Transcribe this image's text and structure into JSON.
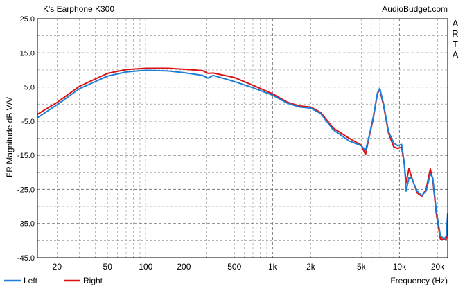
{
  "chart_data": {
    "type": "line",
    "title": "K's Earphone K300",
    "watermark": "AudioBudget.com",
    "side_label": [
      "A",
      "R",
      "T",
      "A"
    ],
    "xlabel": "Frequency (Hz)",
    "ylabel": "FR Magnitude dB V/V",
    "x_scale": "log",
    "xlim": [
      14,
      24000
    ],
    "ylim": [
      -45,
      25
    ],
    "x_ticks": [
      {
        "value": 20,
        "label": "20"
      },
      {
        "value": 50,
        "label": "50"
      },
      {
        "value": 100,
        "label": "100"
      },
      {
        "value": 200,
        "label": "200"
      },
      {
        "value": 500,
        "label": "500"
      },
      {
        "value": 1000,
        "label": "1k"
      },
      {
        "value": 2000,
        "label": "2k"
      },
      {
        "value": 5000,
        "label": "5k"
      },
      {
        "value": 10000,
        "label": "10k"
      },
      {
        "value": 20000,
        "label": "20k"
      }
    ],
    "y_ticks": [
      {
        "value": 25,
        "label": "25.0"
      },
      {
        "value": 15,
        "label": "15.0"
      },
      {
        "value": 5,
        "label": "5.0"
      },
      {
        "value": -5,
        "label": "-5.0"
      },
      {
        "value": -15,
        "label": "-15.0"
      },
      {
        "value": -25,
        "label": "-25.0"
      },
      {
        "value": -35,
        "label": "-35.0"
      },
      {
        "value": -45,
        "label": "-45.0"
      }
    ],
    "grid": true,
    "legend_position": "bottom-left",
    "series": [
      {
        "name": "Left",
        "color": "#1e7fd8",
        "points": [
          [
            14,
            -4
          ],
          [
            20,
            -0.2
          ],
          [
            30,
            4.5
          ],
          [
            50,
            8.2
          ],
          [
            70,
            9.4
          ],
          [
            100,
            9.9
          ],
          [
            150,
            9.7
          ],
          [
            200,
            9.2
          ],
          [
            280,
            8.4
          ],
          [
            310,
            7.6
          ],
          [
            340,
            8.4
          ],
          [
            500,
            6.6
          ],
          [
            700,
            4.8
          ],
          [
            1000,
            2.6
          ],
          [
            1300,
            0.3
          ],
          [
            1600,
            -0.8
          ],
          [
            2000,
            -1.2
          ],
          [
            2400,
            -2.8
          ],
          [
            3000,
            -7.5
          ],
          [
            4000,
            -10.8
          ],
          [
            5000,
            -12.2
          ],
          [
            5400,
            -13.6
          ],
          [
            5700,
            -10.2
          ],
          [
            6200,
            -4
          ],
          [
            6700,
            3.2
          ],
          [
            7000,
            4.6
          ],
          [
            7500,
            0
          ],
          [
            8200,
            -8
          ],
          [
            9000,
            -11.4
          ],
          [
            9700,
            -12.2
          ],
          [
            10400,
            -11.8
          ],
          [
            10900,
            -17
          ],
          [
            11300,
            -25.5
          ],
          [
            11900,
            -21.5
          ],
          [
            12500,
            -21.8
          ],
          [
            13800,
            -25.5
          ],
          [
            15000,
            -26.8
          ],
          [
            16200,
            -25.5
          ],
          [
            17500,
            -20.5
          ],
          [
            18300,
            -21.5
          ],
          [
            19500,
            -31
          ],
          [
            21000,
            -38.5
          ],
          [
            22500,
            -39.5
          ],
          [
            23400,
            -38.6
          ],
          [
            24000,
            -32
          ]
        ]
      },
      {
        "name": "Right",
        "color": "#dd1111",
        "points": [
          [
            14,
            -3
          ],
          [
            20,
            0.5
          ],
          [
            30,
            5.2
          ],
          [
            50,
            9
          ],
          [
            70,
            10.1
          ],
          [
            100,
            10.5
          ],
          [
            150,
            10.5
          ],
          [
            200,
            10.2
          ],
          [
            280,
            9.8
          ],
          [
            310,
            9
          ],
          [
            340,
            9.1
          ],
          [
            500,
            7.8
          ],
          [
            700,
            5.5
          ],
          [
            1000,
            3
          ],
          [
            1300,
            0.6
          ],
          [
            1600,
            -0.5
          ],
          [
            2000,
            -0.9
          ],
          [
            2400,
            -2.5
          ],
          [
            3000,
            -7
          ],
          [
            4000,
            -10
          ],
          [
            5000,
            -12
          ],
          [
            5400,
            -14.8
          ],
          [
            5700,
            -10.5
          ],
          [
            6200,
            -4.5
          ],
          [
            6700,
            3
          ],
          [
            7000,
            4.3
          ],
          [
            7500,
            -0.5
          ],
          [
            8200,
            -8.5
          ],
          [
            9000,
            -12.5
          ],
          [
            9700,
            -13
          ],
          [
            10400,
            -12.6
          ],
          [
            10900,
            -17.5
          ],
          [
            11300,
            -23
          ],
          [
            11900,
            -18.8
          ],
          [
            12500,
            -21.5
          ],
          [
            13800,
            -26
          ],
          [
            15000,
            -27
          ],
          [
            16200,
            -25
          ],
          [
            17500,
            -19
          ],
          [
            18300,
            -22
          ],
          [
            19500,
            -32
          ],
          [
            21000,
            -39.5
          ],
          [
            22500,
            -39.7
          ],
          [
            23400,
            -39.5
          ],
          [
            24000,
            -35
          ]
        ]
      }
    ]
  }
}
